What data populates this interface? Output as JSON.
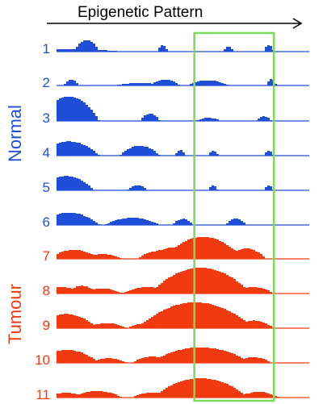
{
  "chart_data": {
    "type": "area",
    "title": "Epigenetic Pattern",
    "groups": [
      {
        "name": "Normal",
        "color": "#1f4fd8",
        "tracks": [
          "1",
          "2",
          "3",
          "4",
          "5",
          "6"
        ]
      },
      {
        "name": "Tumour",
        "color": "#f23a10",
        "tracks": [
          "7",
          "8",
          "9",
          "10",
          "11"
        ]
      }
    ],
    "highlight": {
      "x_range": [
        0.545,
        0.86
      ],
      "color": "#7ed957"
    },
    "tracks": [
      {
        "label": "1",
        "group": "Normal",
        "peaks": [
          [
            0.04,
            0.22,
            0.1
          ],
          [
            0.12,
            0.05,
            0.45
          ],
          [
            0.42,
            0.02,
            0.25
          ],
          [
            0.68,
            0.02,
            0.2
          ],
          [
            0.84,
            0.02,
            0.25
          ]
        ]
      },
      {
        "label": "2",
        "group": "Normal",
        "peaks": [
          [
            0.06,
            0.03,
            0.22
          ],
          [
            0.33,
            0.1,
            0.1
          ],
          [
            0.43,
            0.06,
            0.22
          ],
          [
            0.6,
            0.08,
            0.2
          ],
          [
            0.85,
            0.02,
            0.25
          ]
        ]
      },
      {
        "label": "3",
        "group": "Normal",
        "peaks": [
          [
            0.05,
            0.12,
            0.95
          ],
          [
            0.37,
            0.04,
            0.28
          ],
          [
            0.6,
            0.05,
            0.12
          ],
          [
            0.82,
            0.03,
            0.18
          ]
        ]
      },
      {
        "label": "4",
        "group": "Normal",
        "peaks": [
          [
            0.05,
            0.12,
            0.55
          ],
          [
            0.33,
            0.08,
            0.38
          ],
          [
            0.49,
            0.02,
            0.22
          ],
          [
            0.62,
            0.02,
            0.2
          ],
          [
            0.84,
            0.02,
            0.18
          ]
        ]
      },
      {
        "label": "5",
        "group": "Normal",
        "peaks": [
          [
            0.04,
            0.11,
            0.55
          ],
          [
            0.32,
            0.04,
            0.2
          ],
          [
            0.62,
            0.02,
            0.18
          ],
          [
            0.84,
            0.02,
            0.2
          ]
        ]
      },
      {
        "label": "6",
        "group": "Normal",
        "peaks": [
          [
            0.05,
            0.12,
            0.48
          ],
          [
            0.3,
            0.11,
            0.28
          ],
          [
            0.5,
            0.04,
            0.24
          ],
          [
            0.71,
            0.04,
            0.24
          ]
        ]
      },
      {
        "label": "7",
        "group": "Tumour",
        "peaks": [
          [
            0.01,
            0.05,
            0.12
          ],
          [
            0.07,
            0.1,
            0.35
          ],
          [
            0.18,
            0.08,
            0.18
          ],
          [
            0.4,
            0.08,
            0.3
          ],
          [
            0.48,
            0.14,
            0.45
          ],
          [
            0.58,
            0.16,
            0.85
          ],
          [
            0.75,
            0.08,
            0.4
          ]
        ]
      },
      {
        "label": "8",
        "group": "Tumour",
        "peaks": [
          [
            0.02,
            0.08,
            0.25
          ],
          [
            0.1,
            0.06,
            0.3
          ],
          [
            0.18,
            0.08,
            0.2
          ],
          [
            0.36,
            0.1,
            0.25
          ],
          [
            0.45,
            0.07,
            0.28
          ],
          [
            0.57,
            0.2,
            1.0
          ],
          [
            0.78,
            0.08,
            0.25
          ]
        ]
      },
      {
        "label": "9",
        "group": "Tumour",
        "peaks": [
          [
            0.04,
            0.12,
            0.55
          ],
          [
            0.2,
            0.08,
            0.2
          ],
          [
            0.38,
            0.1,
            0.22
          ],
          [
            0.47,
            0.06,
            0.3
          ],
          [
            0.55,
            0.23,
            1.0
          ],
          [
            0.78,
            0.08,
            0.3
          ]
        ]
      },
      {
        "label": "10",
        "group": "Tumour",
        "peaks": [
          [
            0.04,
            0.13,
            0.5
          ],
          [
            0.21,
            0.07,
            0.18
          ],
          [
            0.38,
            0.08,
            0.24
          ],
          [
            0.49,
            0.06,
            0.28
          ],
          [
            0.57,
            0.2,
            0.6
          ],
          [
            0.78,
            0.07,
            0.22
          ]
        ]
      },
      {
        "label": "11",
        "group": "Tumour",
        "peaks": [
          [
            0.04,
            0.08,
            0.18
          ],
          [
            0.16,
            0.1,
            0.25
          ],
          [
            0.38,
            0.08,
            0.2
          ],
          [
            0.48,
            0.06,
            0.25
          ],
          [
            0.57,
            0.19,
            0.75
          ],
          [
            0.8,
            0.08,
            0.22
          ]
        ]
      }
    ]
  }
}
